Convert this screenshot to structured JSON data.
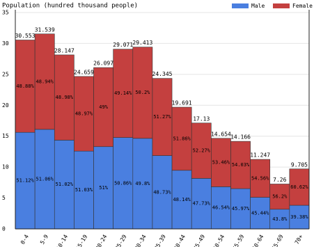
{
  "chart_data": {
    "type": "stacked-bar",
    "title": "Population (hundred thousand people)",
    "categories": [
      "0-4",
      "5-9",
      "10-14",
      "15-19",
      "20-24",
      "25-29",
      "30-34",
      "35-39",
      "40-44",
      "45-49",
      "50-54",
      "55-59",
      "60-64",
      "65-69",
      "70+"
    ],
    "totals": [
      30.553,
      31.539,
      28.147,
      24.659,
      26.097,
      29.071,
      29.413,
      24.345,
      19.691,
      17.13,
      14.654,
      14.166,
      11.247,
      7.26,
      9.705
    ],
    "series": [
      {
        "name": "Male",
        "color": "#4a7fe0",
        "values": [
          15.619,
          16.104,
          14.361,
          12.584,
          13.309,
          14.785,
          14.648,
          11.863,
          9.479,
          8.176,
          6.82,
          6.512,
          5.111,
          3.18,
          3.822
        ],
        "share_labels": [
          "51.12%",
          "51.06%",
          "51.02%",
          "51.03%",
          "51%",
          "50.86%",
          "49.8%",
          "48.73%",
          "48.14%",
          "47.73%",
          "46.54%",
          "45.97%",
          "45.44%",
          "43.8%",
          "39.38%"
        ]
      },
      {
        "name": "Female",
        "color": "#c4403f",
        "values": [
          14.934,
          15.435,
          13.786,
          12.075,
          12.788,
          14.286,
          14.765,
          12.482,
          10.212,
          8.954,
          7.834,
          7.654,
          6.136,
          4.08,
          5.883
        ],
        "share_labels": [
          "48.88%",
          "48.94%",
          "48.98%",
          "48.97%",
          "49%",
          "49.14%",
          "50.2%",
          "51.27%",
          "51.86%",
          "52.27%",
          "53.46%",
          "54.03%",
          "54.56%",
          "56.2%",
          "60.62%"
        ]
      }
    ],
    "ylim": [
      0,
      35
    ],
    "yticks": [
      0,
      5,
      10,
      15,
      20,
      25,
      30,
      35
    ],
    "grid": true
  }
}
